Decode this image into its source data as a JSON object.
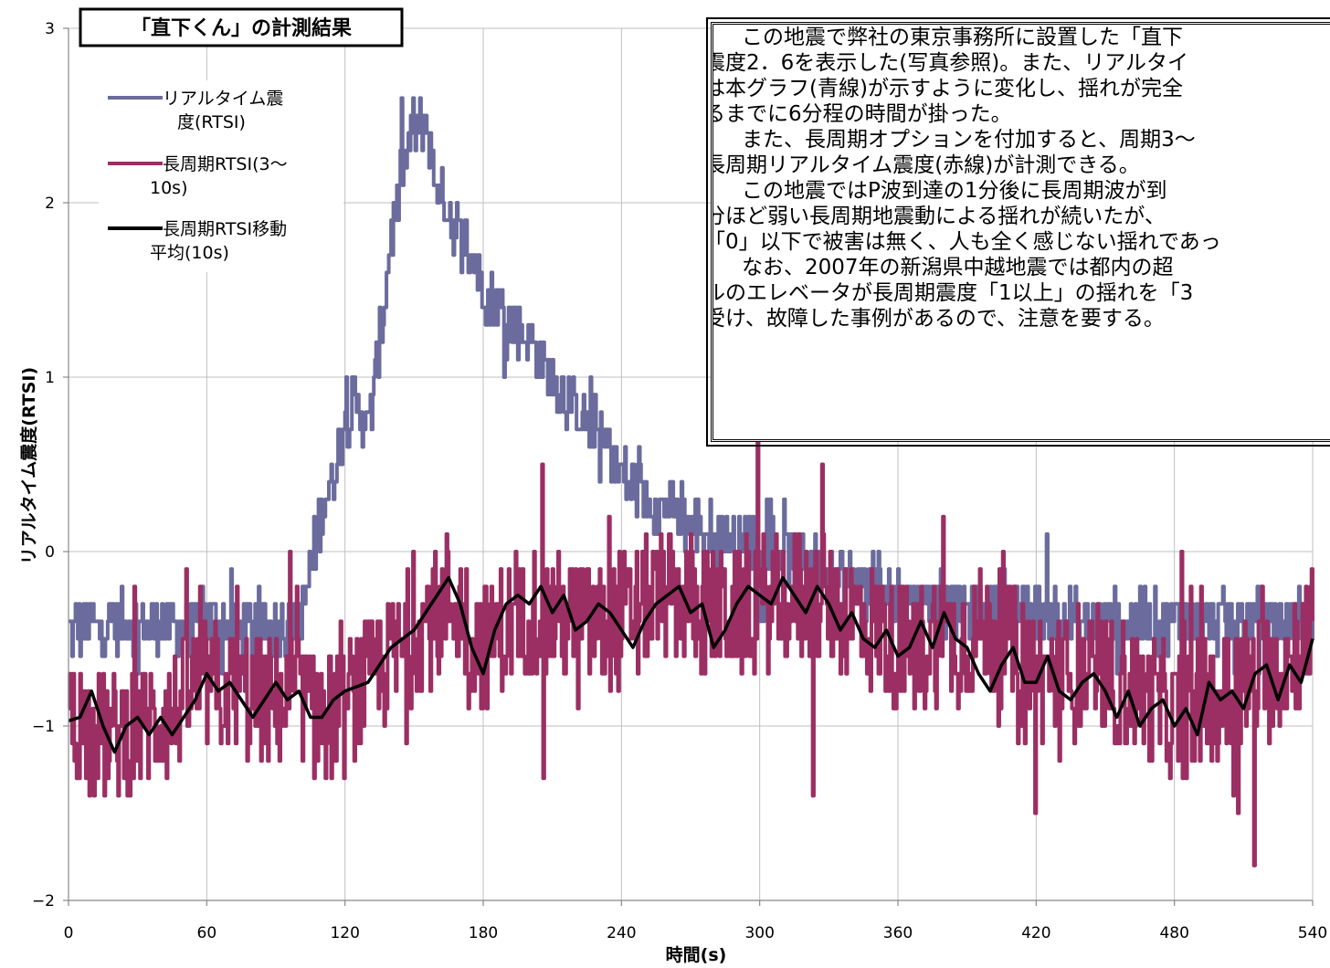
{
  "chart_data": {
    "type": "line",
    "title": "「直下くん」の計測結果",
    "xlabel": "時間(s)",
    "ylabel": "リアルタイム震度(RTSI)",
    "xlim": [
      0,
      540
    ],
    "ylim": [
      -2,
      3
    ],
    "x_ticks": [
      "0",
      "60",
      "120",
      "180",
      "240",
      "300",
      "360",
      "420",
      "480",
      "540"
    ],
    "y_ticks": [
      "3",
      "2",
      "1",
      "0",
      "−1",
      "−2"
    ],
    "grid": true,
    "legend_position": "top-left",
    "series": [
      {
        "name": "リアルタイム震度(RTSI)",
        "color": "#6b6b9e",
        "x": [
          0,
          10,
          20,
          30,
          40,
          50,
          60,
          70,
          80,
          90,
          100,
          105,
          110,
          115,
          120,
          125,
          130,
          135,
          140,
          145,
          150,
          155,
          160,
          165,
          170,
          175,
          180,
          190,
          200,
          210,
          220,
          230,
          240,
          250,
          260,
          270,
          280,
          290,
          300,
          320,
          340,
          360,
          380,
          400,
          420,
          440,
          460,
          480,
          500,
          520,
          540
        ],
        "values": [
          -0.45,
          -0.42,
          -0.4,
          -0.42,
          -0.4,
          -0.45,
          -0.42,
          -0.4,
          -0.45,
          -0.42,
          -0.4,
          -0.1,
          0.25,
          0.45,
          0.75,
          0.85,
          0.7,
          1.2,
          1.8,
          2.2,
          2.45,
          2.45,
          2.1,
          1.95,
          1.8,
          1.7,
          1.5,
          1.35,
          1.2,
          1.0,
          0.8,
          0.7,
          0.45,
          0.3,
          0.25,
          0.15,
          0.1,
          0.1,
          0.05,
          -0.05,
          -0.15,
          -0.25,
          -0.3,
          -0.35,
          -0.35,
          -0.4,
          -0.4,
          -0.4,
          -0.4,
          -0.4,
          -0.4
        ]
      },
      {
        "name": "長周期RTSI(3〜10s)",
        "color": "#9b2f63",
        "x": [
          0,
          20,
          40,
          60,
          80,
          100,
          110,
          120,
          140,
          160,
          165,
          180,
          200,
          220,
          240,
          260,
          280,
          300,
          320,
          340,
          360,
          380,
          400,
          420,
          440,
          460,
          480,
          500,
          520,
          540
        ],
        "values": [
          -0.95,
          -1.05,
          -0.95,
          -0.75,
          -0.85,
          -0.85,
          -0.95,
          -0.9,
          -0.6,
          -0.35,
          -0.25,
          -0.55,
          -0.35,
          -0.4,
          -0.4,
          -0.25,
          -0.35,
          -0.3,
          -0.25,
          -0.35,
          -0.55,
          -0.5,
          -0.45,
          -0.7,
          -0.7,
          -0.8,
          -0.95,
          -0.85,
          -0.7,
          -0.5
        ]
      },
      {
        "name": "長周期RTSI移動平均(10s)",
        "color": "#000000",
        "x": [
          0,
          5,
          10,
          15,
          20,
          25,
          30,
          35,
          40,
          45,
          50,
          55,
          60,
          65,
          70,
          75,
          80,
          85,
          90,
          95,
          100,
          105,
          110,
          115,
          120,
          130,
          140,
          150,
          160,
          165,
          170,
          175,
          180,
          185,
          190,
          195,
          200,
          205,
          210,
          215,
          220,
          225,
          230,
          235,
          240,
          245,
          250,
          255,
          260,
          265,
          270,
          275,
          280,
          285,
          290,
          295,
          300,
          305,
          310,
          315,
          320,
          325,
          330,
          335,
          340,
          345,
          350,
          355,
          360,
          365,
          370,
          375,
          380,
          385,
          390,
          395,
          400,
          405,
          410,
          415,
          420,
          425,
          430,
          435,
          440,
          445,
          450,
          455,
          460,
          465,
          470,
          475,
          480,
          485,
          490,
          495,
          500,
          505,
          510,
          515,
          520,
          525,
          530,
          535,
          540
        ],
        "values": [
          -0.97,
          -0.95,
          -0.8,
          -1.0,
          -1.15,
          -1.0,
          -0.95,
          -1.05,
          -0.95,
          -1.05,
          -0.95,
          -0.85,
          -0.7,
          -0.8,
          -0.75,
          -0.85,
          -0.95,
          -0.85,
          -0.75,
          -0.85,
          -0.8,
          -0.95,
          -0.95,
          -0.85,
          -0.8,
          -0.75,
          -0.55,
          -0.45,
          -0.25,
          -0.15,
          -0.3,
          -0.55,
          -0.7,
          -0.45,
          -0.3,
          -0.25,
          -0.3,
          -0.2,
          -0.35,
          -0.25,
          -0.45,
          -0.4,
          -0.3,
          -0.35,
          -0.45,
          -0.55,
          -0.4,
          -0.3,
          -0.25,
          -0.2,
          -0.35,
          -0.3,
          -0.55,
          -0.45,
          -0.3,
          -0.2,
          -0.25,
          -0.3,
          -0.15,
          -0.25,
          -0.35,
          -0.2,
          -0.3,
          -0.45,
          -0.35,
          -0.5,
          -0.55,
          -0.45,
          -0.6,
          -0.55,
          -0.4,
          -0.55,
          -0.35,
          -0.5,
          -0.55,
          -0.7,
          -0.8,
          -0.65,
          -0.55,
          -0.75,
          -0.75,
          -0.6,
          -0.8,
          -0.85,
          -0.75,
          -0.7,
          -0.8,
          -0.95,
          -0.8,
          -1.0,
          -0.9,
          -0.85,
          -1.0,
          -0.9,
          -1.05,
          -0.75,
          -0.85,
          -0.8,
          -0.9,
          -0.7,
          -0.65,
          -0.85,
          -0.65,
          -0.75,
          -0.5
        ]
      }
    ]
  },
  "legend": {
    "items": [
      {
        "lines": [
          "リアルタイム震",
          "度(RTSI)"
        ],
        "color": "#6b6b9e"
      },
      {
        "lines": [
          "長周期RTSI(3〜",
          "10s)"
        ],
        "color": "#9b2f63"
      },
      {
        "lines": [
          "長周期RTSI移動",
          "平均(10s)"
        ],
        "color": "#000000"
      }
    ]
  },
  "annotation": {
    "lines": [
      "　この地震で弊社の東京事務所に設置した「直下",
      "震度2．6を表示した(写真参照)。また、リアルタイ",
      "は本グラフ(青線)が示すように変化し、揺れが完全",
      "るまでに6分程の時間が掛った。",
      "　また、長周期オプションを付加すると、周期3〜",
      "長周期リアルタイム震度(赤線)が計測できる。",
      "　この地震ではP波到達の1分後に長周期波が到",
      "分ほど弱い長周期地震動による揺れが続いたが、",
      "「0」以下で被害は無く、人も全く感じない揺れであっ",
      "　なお、2007年の新潟県中越地震では都内の超",
      "ルのエレベータが長周期震度「1以上」の揺れを「3",
      "受け、故障した事例があるので、注意を要する。"
    ]
  }
}
